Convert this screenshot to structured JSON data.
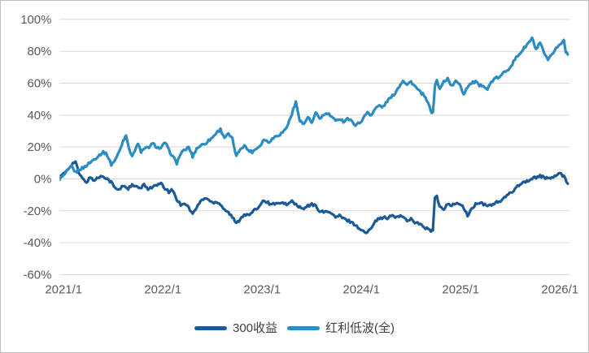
{
  "chart_data": {
    "type": "line",
    "title": "",
    "xlabel": "",
    "ylabel": "",
    "grid": "horizontal",
    "legend_position": "bottom-center",
    "noise_pct": 0.85,
    "x_axis": {
      "min": 2020.96,
      "max": 2026.1,
      "ticks": [
        {
          "year": 2021,
          "label": "2021/1"
        },
        {
          "year": 2022,
          "label": "2022/1"
        },
        {
          "year": 2023,
          "label": "2023/1"
        },
        {
          "year": 2024,
          "label": "2024/1"
        },
        {
          "year": 2025,
          "label": "2025/1"
        },
        {
          "year": 2026,
          "label": "2026/1"
        }
      ]
    },
    "y_axis": {
      "min": -60,
      "max": 100,
      "step": 20,
      "format": "percent",
      "tick_values": [
        100,
        80,
        60,
        40,
        20,
        0,
        -20,
        -40,
        -60
      ],
      "tick_labels": [
        "100%",
        "80%",
        "60%",
        "40%",
        "20%",
        "0%",
        "-20%",
        "-40%",
        "-60%"
      ]
    },
    "series": [
      {
        "name": "300收益",
        "color": "#1A5A96",
        "points": [
          [
            2020.96,
            1
          ],
          [
            2021.0,
            3
          ],
          [
            2021.04,
            6
          ],
          [
            2021.08,
            9
          ],
          [
            2021.12,
            11
          ],
          [
            2021.15,
            4
          ],
          [
            2021.19,
            0
          ],
          [
            2021.23,
            -2
          ],
          [
            2021.27,
            1
          ],
          [
            2021.31,
            -1
          ],
          [
            2021.35,
            1
          ],
          [
            2021.4,
            2
          ],
          [
            2021.44,
            0
          ],
          [
            2021.48,
            -2
          ],
          [
            2021.52,
            -6
          ],
          [
            2021.56,
            -7
          ],
          [
            2021.6,
            -4
          ],
          [
            2021.65,
            -6
          ],
          [
            2021.69,
            -4
          ],
          [
            2021.73,
            -5
          ],
          [
            2021.77,
            -6
          ],
          [
            2021.81,
            -4
          ],
          [
            2021.85,
            -6
          ],
          [
            2021.9,
            -5
          ],
          [
            2021.94,
            -4
          ],
          [
            2021.98,
            -3
          ],
          [
            2022.02,
            -6
          ],
          [
            2022.06,
            -8
          ],
          [
            2022.1,
            -7
          ],
          [
            2022.14,
            -13
          ],
          [
            2022.18,
            -16
          ],
          [
            2022.22,
            -15
          ],
          [
            2022.26,
            -18
          ],
          [
            2022.3,
            -22
          ],
          [
            2022.34,
            -18
          ],
          [
            2022.38,
            -14
          ],
          [
            2022.42,
            -12
          ],
          [
            2022.46,
            -13
          ],
          [
            2022.5,
            -15
          ],
          [
            2022.54,
            -14
          ],
          [
            2022.58,
            -16
          ],
          [
            2022.62,
            -19
          ],
          [
            2022.66,
            -21
          ],
          [
            2022.7,
            -24
          ],
          [
            2022.74,
            -28
          ],
          [
            2022.78,
            -25
          ],
          [
            2022.82,
            -22
          ],
          [
            2022.86,
            -23
          ],
          [
            2022.9,
            -21
          ],
          [
            2022.94,
            -19
          ],
          [
            2022.98,
            -16
          ],
          [
            2023.02,
            -13
          ],
          [
            2023.06,
            -15
          ],
          [
            2023.1,
            -16
          ],
          [
            2023.14,
            -15
          ],
          [
            2023.18,
            -16
          ],
          [
            2023.22,
            -15
          ],
          [
            2023.26,
            -16
          ],
          [
            2023.3,
            -14
          ],
          [
            2023.34,
            -16
          ],
          [
            2023.38,
            -18
          ],
          [
            2023.42,
            -19
          ],
          [
            2023.46,
            -17
          ],
          [
            2023.5,
            -16
          ],
          [
            2023.54,
            -17
          ],
          [
            2023.58,
            -20
          ],
          [
            2023.62,
            -21
          ],
          [
            2023.66,
            -20
          ],
          [
            2023.7,
            -22
          ],
          [
            2023.74,
            -24
          ],
          [
            2023.78,
            -23
          ],
          [
            2023.82,
            -25
          ],
          [
            2023.86,
            -26
          ],
          [
            2023.9,
            -27
          ],
          [
            2023.94,
            -29
          ],
          [
            2023.98,
            -31
          ],
          [
            2024.02,
            -33
          ],
          [
            2024.06,
            -34
          ],
          [
            2024.1,
            -30
          ],
          [
            2024.14,
            -26
          ],
          [
            2024.18,
            -25
          ],
          [
            2024.22,
            -24
          ],
          [
            2024.26,
            -25
          ],
          [
            2024.3,
            -23
          ],
          [
            2024.34,
            -24
          ],
          [
            2024.38,
            -23
          ],
          [
            2024.42,
            -24
          ],
          [
            2024.46,
            -26
          ],
          [
            2024.5,
            -25
          ],
          [
            2024.54,
            -27
          ],
          [
            2024.58,
            -28
          ],
          [
            2024.62,
            -30
          ],
          [
            2024.66,
            -31
          ],
          [
            2024.7,
            -33
          ],
          [
            2024.72,
            -32
          ],
          [
            2024.74,
            -12
          ],
          [
            2024.76,
            -11
          ],
          [
            2024.79,
            -18
          ],
          [
            2024.83,
            -19
          ],
          [
            2024.87,
            -15
          ],
          [
            2024.91,
            -17
          ],
          [
            2024.95,
            -15
          ],
          [
            2024.99,
            -16
          ],
          [
            2025.03,
            -18
          ],
          [
            2025.07,
            -23
          ],
          [
            2025.11,
            -19
          ],
          [
            2025.15,
            -16
          ],
          [
            2025.19,
            -15
          ],
          [
            2025.23,
            -16
          ],
          [
            2025.27,
            -17
          ],
          [
            2025.31,
            -16
          ],
          [
            2025.35,
            -15
          ],
          [
            2025.4,
            -14
          ],
          [
            2025.44,
            -12
          ],
          [
            2025.48,
            -10
          ],
          [
            2025.52,
            -8
          ],
          [
            2025.56,
            -5
          ],
          [
            2025.6,
            -3
          ],
          [
            2025.64,
            -2
          ],
          [
            2025.68,
            -1
          ],
          [
            2025.72,
            0
          ],
          [
            2025.76,
            1
          ],
          [
            2025.8,
            2
          ],
          [
            2025.84,
            1
          ],
          [
            2025.88,
            0
          ],
          [
            2025.92,
            1
          ],
          [
            2025.96,
            2
          ],
          [
            2026.0,
            3
          ],
          [
            2026.04,
            2
          ],
          [
            2026.08,
            -3
          ]
        ]
      },
      {
        "name": "红利低波(全)",
        "color": "#2B8CC4",
        "points": [
          [
            2020.96,
            0
          ],
          [
            2021.0,
            2
          ],
          [
            2021.04,
            5
          ],
          [
            2021.08,
            8
          ],
          [
            2021.12,
            4
          ],
          [
            2021.16,
            6
          ],
          [
            2021.2,
            7
          ],
          [
            2021.24,
            9
          ],
          [
            2021.28,
            11
          ],
          [
            2021.32,
            13
          ],
          [
            2021.36,
            15
          ],
          [
            2021.4,
            17
          ],
          [
            2021.44,
            15
          ],
          [
            2021.48,
            9
          ],
          [
            2021.52,
            12
          ],
          [
            2021.56,
            17
          ],
          [
            2021.6,
            24
          ],
          [
            2021.63,
            28
          ],
          [
            2021.66,
            18
          ],
          [
            2021.69,
            15
          ],
          [
            2021.72,
            18
          ],
          [
            2021.75,
            22
          ],
          [
            2021.78,
            17
          ],
          [
            2021.82,
            19
          ],
          [
            2021.86,
            20
          ],
          [
            2021.9,
            22
          ],
          [
            2021.94,
            20
          ],
          [
            2021.98,
            19
          ],
          [
            2022.02,
            23
          ],
          [
            2022.06,
            18
          ],
          [
            2022.1,
            14
          ],
          [
            2022.14,
            10
          ],
          [
            2022.18,
            16
          ],
          [
            2022.22,
            18
          ],
          [
            2022.26,
            20
          ],
          [
            2022.3,
            14
          ],
          [
            2022.34,
            19
          ],
          [
            2022.38,
            21
          ],
          [
            2022.42,
            22
          ],
          [
            2022.46,
            24
          ],
          [
            2022.5,
            26
          ],
          [
            2022.54,
            29
          ],
          [
            2022.58,
            31
          ],
          [
            2022.62,
            26
          ],
          [
            2022.66,
            28
          ],
          [
            2022.7,
            25
          ],
          [
            2022.74,
            14
          ],
          [
            2022.78,
            19
          ],
          [
            2022.82,
            21
          ],
          [
            2022.86,
            18
          ],
          [
            2022.9,
            17
          ],
          [
            2022.94,
            19
          ],
          [
            2022.98,
            21
          ],
          [
            2023.02,
            25
          ],
          [
            2023.06,
            23
          ],
          [
            2023.1,
            25
          ],
          [
            2023.14,
            27
          ],
          [
            2023.18,
            28
          ],
          [
            2023.22,
            30
          ],
          [
            2023.26,
            34
          ],
          [
            2023.3,
            41
          ],
          [
            2023.34,
            48
          ],
          [
            2023.38,
            37
          ],
          [
            2023.42,
            34
          ],
          [
            2023.46,
            39
          ],
          [
            2023.5,
            35
          ],
          [
            2023.54,
            41
          ],
          [
            2023.58,
            38
          ],
          [
            2023.62,
            40
          ],
          [
            2023.66,
            41
          ],
          [
            2023.7,
            39
          ],
          [
            2023.74,
            36
          ],
          [
            2023.78,
            38
          ],
          [
            2023.82,
            36
          ],
          [
            2023.86,
            38
          ],
          [
            2023.9,
            36
          ],
          [
            2023.94,
            34
          ],
          [
            2023.98,
            35
          ],
          [
            2024.02,
            38
          ],
          [
            2024.06,
            42
          ],
          [
            2024.1,
            40
          ],
          [
            2024.14,
            44
          ],
          [
            2024.18,
            46
          ],
          [
            2024.22,
            45
          ],
          [
            2024.26,
            49
          ],
          [
            2024.3,
            51
          ],
          [
            2024.34,
            54
          ],
          [
            2024.38,
            58
          ],
          [
            2024.42,
            62
          ],
          [
            2024.46,
            59
          ],
          [
            2024.5,
            61
          ],
          [
            2024.54,
            58
          ],
          [
            2024.58,
            55
          ],
          [
            2024.62,
            53
          ],
          [
            2024.66,
            49
          ],
          [
            2024.7,
            43
          ],
          [
            2024.72,
            41
          ],
          [
            2024.74,
            58
          ],
          [
            2024.76,
            62
          ],
          [
            2024.79,
            56
          ],
          [
            2024.83,
            61
          ],
          [
            2024.87,
            63
          ],
          [
            2024.91,
            58
          ],
          [
            2024.95,
            61
          ],
          [
            2024.99,
            60
          ],
          [
            2025.03,
            53
          ],
          [
            2025.07,
            58
          ],
          [
            2025.11,
            60
          ],
          [
            2025.15,
            61
          ],
          [
            2025.19,
            58
          ],
          [
            2025.23,
            59
          ],
          [
            2025.27,
            56
          ],
          [
            2025.31,
            61
          ],
          [
            2025.35,
            63
          ],
          [
            2025.4,
            64
          ],
          [
            2025.44,
            67
          ],
          [
            2025.48,
            69
          ],
          [
            2025.52,
            72
          ],
          [
            2025.56,
            76
          ],
          [
            2025.6,
            79
          ],
          [
            2025.64,
            82
          ],
          [
            2025.68,
            85
          ],
          [
            2025.72,
            88
          ],
          [
            2025.76,
            81
          ],
          [
            2025.8,
            85
          ],
          [
            2025.84,
            79
          ],
          [
            2025.88,
            74
          ],
          [
            2025.92,
            78
          ],
          [
            2025.96,
            82
          ],
          [
            2026.0,
            84
          ],
          [
            2026.04,
            87
          ],
          [
            2026.06,
            80
          ],
          [
            2026.08,
            78
          ]
        ]
      }
    ]
  },
  "colors": {
    "background": "#ffffff",
    "border": "#bdbdbd",
    "gridline": "#d9d9d9",
    "axis_text": "#595959",
    "legend_text": "#3f3f3f"
  }
}
